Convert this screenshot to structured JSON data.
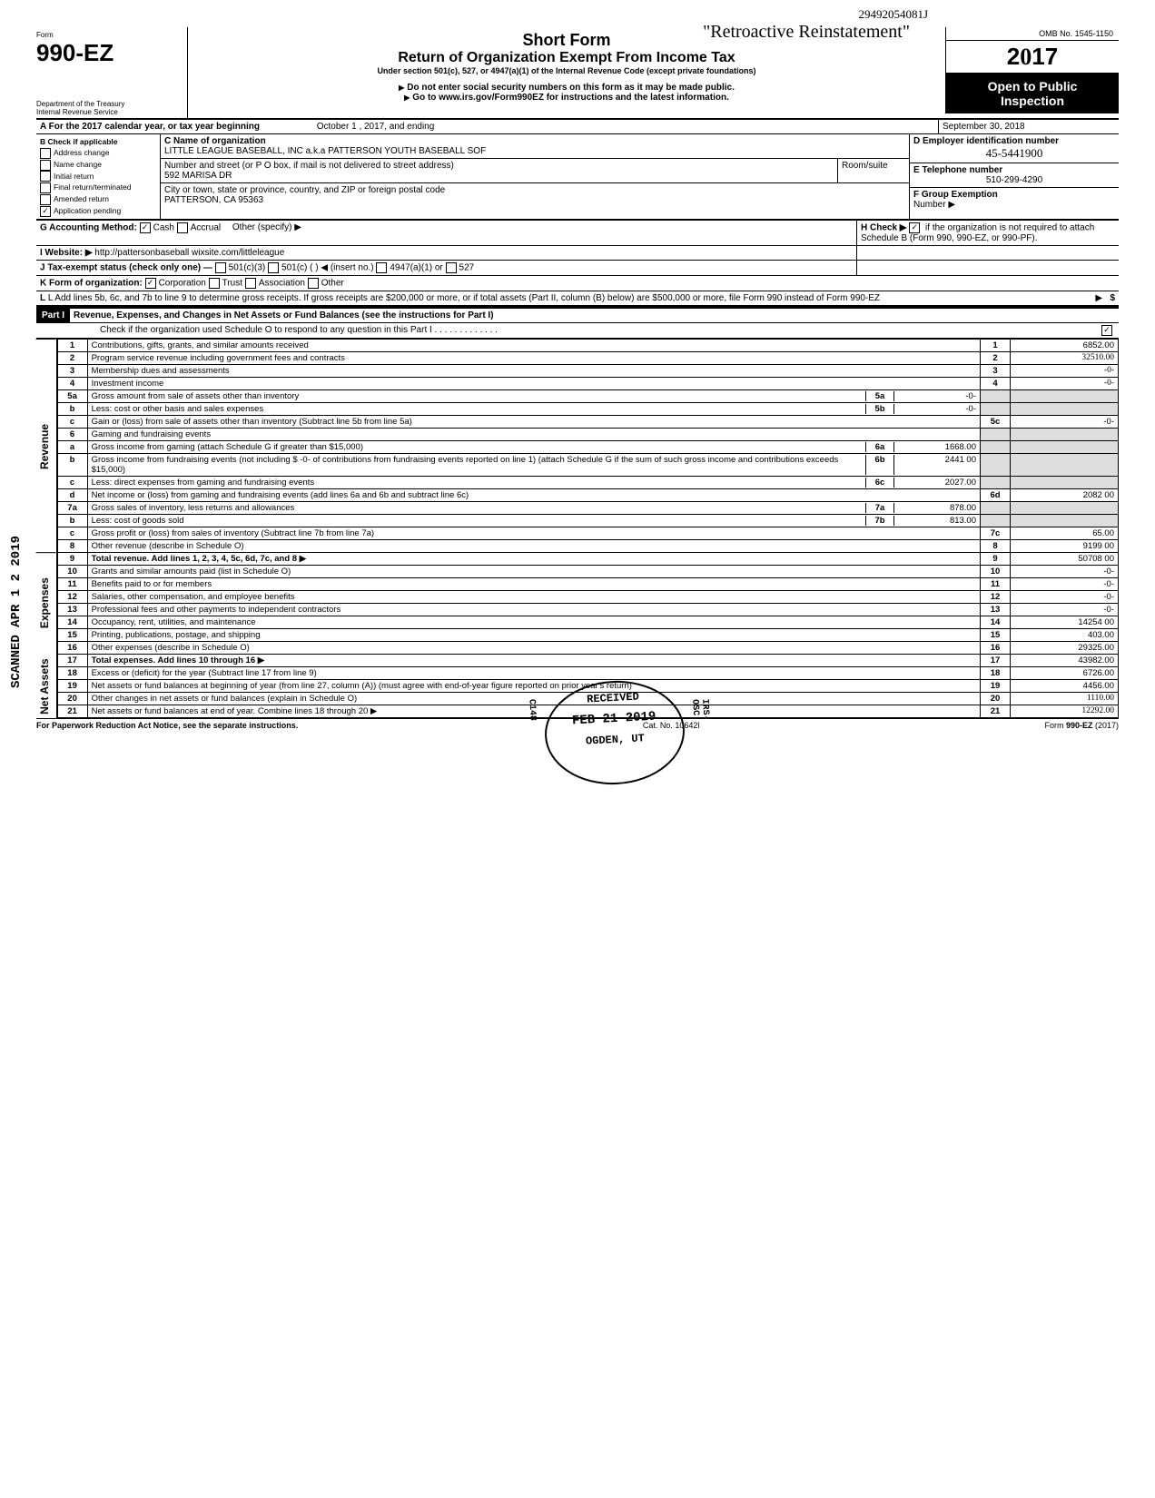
{
  "form": {
    "number": "990-EZ",
    "dept1": "Department of the Treasury",
    "dept2": "Internal Revenue Service",
    "short": "Short Form",
    "title": "Return of Organization Exempt From Income Tax",
    "under": "Under section 501(c), 527, or 4947(a)(1) of the Internal Revenue Code (except private foundations)",
    "warn1": "Do not enter social security numbers on this form as it may be made public.",
    "warn2": "Go to www.irs.gov/Form990EZ for instructions and the latest information.",
    "omb": "OMB No. 1545-1150",
    "year": "2017",
    "open1": "Open to Public",
    "open2": "Inspection",
    "hw_stamp": "\"Retroactive Reinstatement\"",
    "hw_num": "29492054081J"
  },
  "periodA": {
    "label": "A For the 2017 calendar year, or tax year beginning",
    "start": "October 1",
    "mid": ", 2017, and ending",
    "end": "September 30, 2018"
  },
  "checkB": {
    "title": "B Check if applicable",
    "opts": [
      "Address change",
      "Name change",
      "Initial return",
      "Final return/terminated",
      "Amended return",
      "Application pending"
    ],
    "checked": 5
  },
  "blockC": {
    "label": "C Name of organization",
    "name": "LITTLE LEAGUE BASEBALL, INC a.k.a  PATTERSON YOUTH BASEBALL SOF",
    "addrLabel": "Number and street (or P O  box, if mail is not delivered to street address)",
    "room": "Room/suite",
    "addr": "592 MARISA DR",
    "cityLabel": "City or town, state or province, country, and ZIP or foreign postal code",
    "city": "PATTERSON, CA 95363"
  },
  "blockD": {
    "label": "D Employer identification number",
    "val": "45-5441900"
  },
  "blockE": {
    "label": "E Telephone number",
    "val": "510-299-4290"
  },
  "blockF": {
    "label": "F Group Exemption",
    "label2": "Number ▶"
  },
  "rowG": {
    "label": "G Accounting Method:",
    "opts": [
      "Cash",
      "Accrual"
    ],
    "other": "Other (specify) ▶",
    "checked": 0
  },
  "rowH": {
    "label": "H Check ▶",
    "text": "if the organization is not required to attach Schedule B (Form 990, 990-EZ, or 990-PF).",
    "checked": true
  },
  "rowI": {
    "label": "I  Website: ▶",
    "val": "http://pattersonbaseball wixsite.com/littleleague"
  },
  "rowJ": {
    "label": "J Tax-exempt status (check only one) —",
    "o1": "501(c)(3)",
    "o2": "501(c) (",
    "o2b": ") ◀ (insert no.)",
    "o3": "4947(a)(1) or",
    "o4": "527"
  },
  "rowK": {
    "label": "K Form of organization:",
    "opts": [
      "Corporation",
      "Trust",
      "Association",
      "Other"
    ],
    "checked": 0
  },
  "rowL": {
    "text": "L Add lines 5b, 6c, and 7b to line 9 to determine gross receipts. If gross receipts are $200,000 or more, or if total assets (Part II, column (B) below) are $500,000 or more, file Form 990 instead of Form 990-EZ",
    "dollar": "$"
  },
  "part1": {
    "label": "Part I",
    "title": "Revenue, Expenses, and Changes in Net Assets or Fund Balances (see the instructions for Part I)",
    "check": "Check if the organization used Schedule O to respond to any question in this Part I",
    "checked": true
  },
  "side": {
    "rev": "Revenue",
    "exp": "Expenses",
    "net": "Net Assets"
  },
  "margin_stamp": "SCANNED APR 1 2 2019",
  "lines": [
    {
      "n": "1",
      "d": "Contributions, gifts, grants, and similar amounts received",
      "r": "1",
      "a": "6852.00"
    },
    {
      "n": "2",
      "d": "Program service revenue including government fees and contracts",
      "r": "2",
      "a": "32510.00",
      "hw": true
    },
    {
      "n": "3",
      "d": "Membership dues and assessments",
      "r": "3",
      "a": "-0-",
      "hw": true
    },
    {
      "n": "4",
      "d": "Investment income",
      "r": "4",
      "a": "-0-",
      "hw": true
    },
    {
      "n": "5a",
      "d": "Gross amount from sale of assets other than inventory",
      "sub": "5a",
      "sa": "-0-"
    },
    {
      "n": "b",
      "d": "Less: cost or other basis and sales expenses",
      "sub": "5b",
      "sa": "-0-"
    },
    {
      "n": "c",
      "d": "Gain or (loss) from sale of assets other than inventory (Subtract line 5b from line 5a)",
      "r": "5c",
      "a": "-0-"
    },
    {
      "n": "6",
      "d": "Gaming and fundraising events"
    },
    {
      "n": "a",
      "d": "Gross income from gaming (attach Schedule G if greater than $15,000)",
      "sub": "6a",
      "sa": "1668.00"
    },
    {
      "n": "b",
      "d": "Gross income from fundraising events (not including  $           -0-         of contributions from fundraising events reported on line 1) (attach Schedule G if the sum of such gross income and contributions exceeds $15,000)",
      "sub": "6b",
      "sa": "2441 00"
    },
    {
      "n": "c",
      "d": "Less: direct expenses from gaming and fundraising events",
      "sub": "6c",
      "sa": "2027.00"
    },
    {
      "n": "d",
      "d": "Net income or (loss) from gaming and fundraising events (add lines 6a and 6b and subtract line 6c)",
      "r": "6d",
      "a": "2082 00"
    },
    {
      "n": "7a",
      "d": "Gross sales of inventory, less returns and allowances",
      "sub": "7a",
      "sa": "878.00"
    },
    {
      "n": "b",
      "d": "Less: cost of goods sold",
      "sub": "7b",
      "sa": "813.00"
    },
    {
      "n": "c",
      "d": "Gross profit or (loss) from sales of inventory (Subtract line 7b from line 7a)",
      "r": "7c",
      "a": "65.00"
    },
    {
      "n": "8",
      "d": "Other revenue (describe in Schedule O)",
      "r": "8",
      "a": "9199 00"
    },
    {
      "n": "9",
      "d": "Total revenue. Add lines 1, 2, 3, 4, 5c, 6d, 7c, and 8   ▶",
      "r": "9",
      "a": "50708 00",
      "bold": true
    },
    {
      "n": "10",
      "d": "Grants and similar amounts paid (list in Schedule O)",
      "r": "10",
      "a": "-0-"
    },
    {
      "n": "11",
      "d": "Benefits paid to or for members",
      "r": "11",
      "a": "-0-"
    },
    {
      "n": "12",
      "d": "Salaries, other compensation, and employee benefits",
      "r": "12",
      "a": "-0-"
    },
    {
      "n": "13",
      "d": "Professional fees and other payments to independent contractors",
      "r": "13",
      "a": "-0-"
    },
    {
      "n": "14",
      "d": "Occupancy, rent, utilities, and maintenance",
      "r": "14",
      "a": "14254 00"
    },
    {
      "n": "15",
      "d": "Printing, publications, postage, and shipping",
      "r": "15",
      "a": "403.00"
    },
    {
      "n": "16",
      "d": "Other expenses (describe in Schedule O)",
      "r": "16",
      "a": "29325.00"
    },
    {
      "n": "17",
      "d": "Total expenses. Add lines 10 through 16   ▶",
      "r": "17",
      "a": "43982.00",
      "bold": true
    },
    {
      "n": "18",
      "d": "Excess or (deficit) for the year (Subtract line 17 from line 9)",
      "r": "18",
      "a": "6726.00"
    },
    {
      "n": "19",
      "d": "Net assets or fund balances at beginning of year (from line 27, column (A)) (must agree with end-of-year figure reported on prior year's return)",
      "r": "19",
      "a": "4456.00"
    },
    {
      "n": "20",
      "d": "Other changes in net assets or fund balances (explain in Schedule O)",
      "r": "20",
      "a": "1110.00",
      "hw": true
    },
    {
      "n": "21",
      "d": "Net assets or fund balances at end of year. Combine lines 18 through 20   ▶",
      "r": "21",
      "a": "12292.00",
      "hw": true
    }
  ],
  "stamps": {
    "received": "RECEIVED",
    "date": "FEB 21 2019",
    "loc": "OGDEN, UT",
    "side1": "C148",
    "side2": "IRS-OSC"
  },
  "footer": {
    "left": "For Paperwork Reduction Act Notice, see the separate instructions.",
    "mid": "Cat. No. 10642I",
    "right": "Form 990-EZ (2017)"
  }
}
